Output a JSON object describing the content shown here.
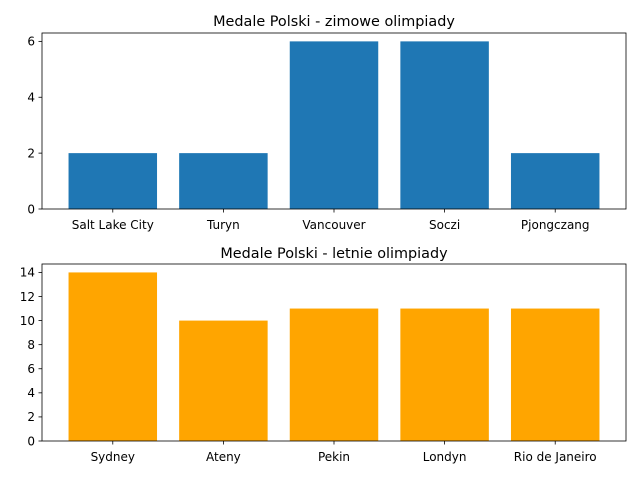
{
  "chart_data": [
    {
      "type": "bar",
      "title": "Medale Polski - zimowe olimpiady",
      "xlabel": "",
      "ylabel": "",
      "categories": [
        "Salt Lake City",
        "Turyn",
        "Vancouver",
        "Soczi",
        "Pjongczang"
      ],
      "values": [
        2,
        2,
        6,
        6,
        2
      ],
      "ylim": [
        0,
        6.3
      ],
      "yticks": [
        0,
        2,
        4,
        6
      ],
      "color": "#1f77b4",
      "grid": false,
      "legend": false
    },
    {
      "type": "bar",
      "title": "Medale Polski - letnie olimpiady",
      "xlabel": "",
      "ylabel": "",
      "categories": [
        "Sydney",
        "Ateny",
        "Pekin",
        "Londyn",
        "Rio de Janeiro"
      ],
      "values": [
        14,
        10,
        11,
        11,
        11
      ],
      "ylim": [
        0,
        14.7
      ],
      "yticks": [
        0,
        2,
        4,
        6,
        8,
        10,
        12,
        14
      ],
      "color": "#ffa500",
      "grid": false,
      "legend": false
    }
  ]
}
